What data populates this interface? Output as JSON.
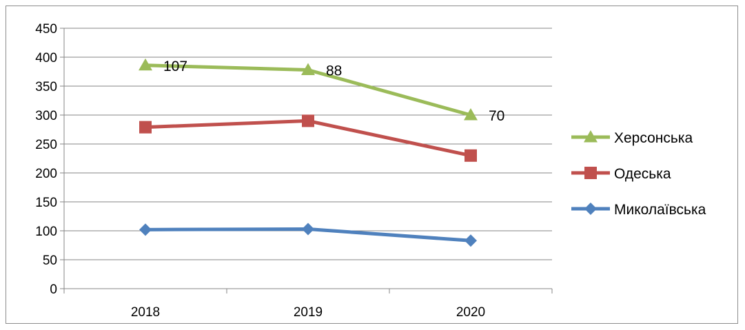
{
  "chart_data": {
    "type": "line",
    "title": "",
    "xlabel": "",
    "ylabel": "",
    "categories": [
      "2018",
      "2019",
      "2020"
    ],
    "ylim": [
      0,
      450
    ],
    "yticks": [
      0,
      50,
      100,
      150,
      200,
      250,
      300,
      350,
      400,
      450
    ],
    "grid": true,
    "legend_position": "right",
    "series": [
      {
        "name": "Херсонська",
        "values": [
          386,
          378,
          300
        ],
        "color": "#9BBB59",
        "marker": "triangle",
        "labels": [
          "107",
          "88",
          "70"
        ]
      },
      {
        "name": "Одеська",
        "values": [
          279,
          290,
          230
        ],
        "color": "#C0504D",
        "marker": "square"
      },
      {
        "name": "Миколаївська",
        "values": [
          102,
          103,
          83
        ],
        "color": "#4F81BD",
        "marker": "diamond"
      }
    ]
  }
}
